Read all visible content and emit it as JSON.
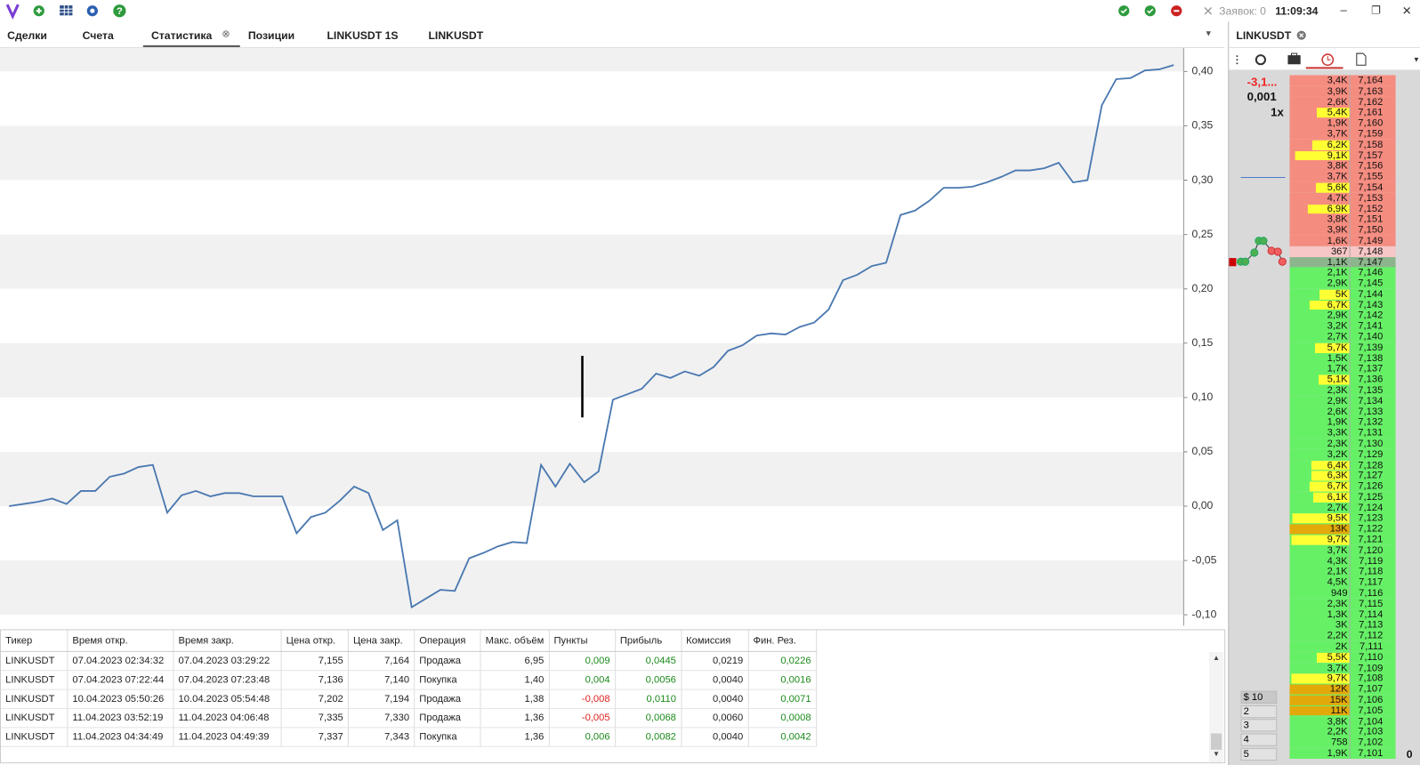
{
  "toolbar": {
    "orders": "Заявок: 0",
    "time": "11:09:34"
  },
  "tabs": [
    "Сделки",
    "Счета",
    "Статистика",
    "Позиции",
    "LINKUSDT 1S",
    "LINKUSDT"
  ],
  "chart_data": {
    "type": "line",
    "color": "#4a78b0",
    "values": [
      0,
      0.002,
      0.004,
      0.007,
      0.002,
      0.014,
      0.014,
      0.027,
      0.03,
      0.036,
      0.038,
      -0.006,
      0.01,
      0.014,
      0.009,
      0.012,
      0.012,
      0.009,
      0.009,
      0.009,
      -0.025,
      -0.01,
      -0.006,
      0.005,
      0.018,
      0.012,
      -0.022,
      -0.013,
      -0.093,
      -0.085,
      -0.077,
      -0.078,
      -0.048,
      -0.043,
      -0.037,
      -0.033,
      -0.034,
      0.038,
      0.018,
      0.039,
      0.022,
      0.032,
      0.098,
      0.103,
      0.108,
      0.122,
      0.118,
      0.124,
      0.12,
      0.128,
      0.143,
      0.148,
      0.157,
      0.159,
      0.158,
      0.165,
      0.169,
      0.181,
      0.208,
      0.213,
      0.221,
      0.224,
      0.268,
      0.272,
      0.281,
      0.293,
      0.293,
      0.294,
      0.298,
      0.303,
      0.309,
      0.309,
      0.311,
      0.316,
      0.298,
      0.3,
      0.369,
      0.393,
      0.394,
      0.401,
      0.402,
      0.406
    ],
    "ylim": [
      -0.11,
      0.42
    ],
    "yticks": [
      {
        "value": 0.4,
        "label": "0,40"
      },
      {
        "value": 0.35,
        "label": "0,35"
      },
      {
        "value": 0.3,
        "label": "0,30"
      },
      {
        "value": 0.25,
        "label": "0,25"
      },
      {
        "value": 0.2,
        "label": "0,20"
      },
      {
        "value": 0.15,
        "label": "0,15"
      },
      {
        "value": 0.1,
        "label": "0,10"
      },
      {
        "value": 0.05,
        "label": "0,05"
      },
      {
        "value": 0,
        "label": "0,00"
      },
      {
        "value": -0.05,
        "label": "-0,05"
      },
      {
        "value": -0.1,
        "label": "-0,10"
      }
    ]
  },
  "table": {
    "columns": [
      "Тикер",
      "Время откр.",
      "Время закр.",
      "Цена откр.",
      "Цена закр.",
      "Операция",
      "Макс. объём",
      "Пункты",
      "Прибыль",
      "Комиссия",
      "Фин. Рез."
    ],
    "rows": [
      [
        "LINKUSDT",
        "07.04.2023 02:34:32",
        "07.04.2023 03:29:22",
        "7,155",
        "7,164",
        "Продажа",
        "6,95",
        "0,009",
        "0,0445",
        "0,0219",
        "0,0226"
      ],
      [
        "LINKUSDT",
        "07.04.2023 07:22:44",
        "07.04.2023 07:23:48",
        "7,136",
        "7,140",
        "Покупка",
        "1,40",
        "0,004",
        "0,0056",
        "0,0040",
        "0,0016"
      ],
      [
        "LINKUSDT",
        "10.04.2023 05:50:26",
        "10.04.2023 05:54:48",
        "7,202",
        "7,194",
        "Продажа",
        "1,38",
        "-0,008",
        "0,0110",
        "0,0040",
        "0,0071"
      ],
      [
        "LINKUSDT",
        "11.04.2023 03:52:19",
        "11.04.2023 04:06:48",
        "7,335",
        "7,330",
        "Продажа",
        "1,36",
        "-0,005",
        "0,0068",
        "0,0060",
        "0,0008"
      ],
      [
        "LINKUSDT",
        "11.04.2023 04:34:49",
        "11.04.2023 04:49:39",
        "7,337",
        "7,343",
        "Покупка",
        "1,36",
        "0,006",
        "0,0082",
        "0,0040",
        "0,0042"
      ]
    ]
  },
  "book": {
    "tab": "LINKUSDT",
    "pnl": "-3,1...",
    "size": "0,001",
    "leverage": "1x",
    "asks": [
      [
        "3,4K",
        "7,164"
      ],
      [
        "3,9K",
        "7,163"
      ],
      [
        "2,6K",
        "7,162"
      ],
      [
        "5,4K",
        "7,161"
      ],
      [
        "1,9K",
        "7,160"
      ],
      [
        "3,7K",
        "7,159"
      ],
      [
        "6,2K",
        "7,158"
      ],
      [
        "9,1K",
        "7,157"
      ],
      [
        "3,8K",
        "7,156"
      ],
      [
        "3,7K",
        "7,155"
      ],
      [
        "5,6K",
        "7,154"
      ],
      [
        "4,7K",
        "7,153"
      ],
      [
        "6,9K",
        "7,152"
      ],
      [
        "3,8K",
        "7,151"
      ],
      [
        "3,9K",
        "7,150"
      ],
      [
        "1,6K",
        "7,149"
      ],
      [
        "367",
        "7,148"
      ]
    ],
    "bids": [
      [
        "1,1K",
        "7,147"
      ],
      [
        "2,1K",
        "7,146"
      ],
      [
        "2,9K",
        "7,145"
      ],
      [
        "5K",
        "7,144"
      ],
      [
        "6,7K",
        "7,143"
      ],
      [
        "2,9K",
        "7,142"
      ],
      [
        "3,2K",
        "7,141"
      ],
      [
        "2,7K",
        "7,140"
      ],
      [
        "5,7K",
        "7,139"
      ],
      [
        "1,5K",
        "7,138"
      ],
      [
        "1,7K",
        "7,137"
      ],
      [
        "5,1K",
        "7,136"
      ],
      [
        "2,3K",
        "7,135"
      ],
      [
        "2,9K",
        "7,134"
      ],
      [
        "2,6K",
        "7,133"
      ],
      [
        "1,9K",
        "7,132"
      ],
      [
        "3,3K",
        "7,131"
      ],
      [
        "2,3K",
        "7,130"
      ],
      [
        "3,2K",
        "7,129"
      ],
      [
        "6,4K",
        "7,128"
      ],
      [
        "6,3K",
        "7,127"
      ],
      [
        "6,7K",
        "7,126"
      ],
      [
        "6,1K",
        "7,125"
      ],
      [
        "2,7K",
        "7,124"
      ],
      [
        "9,5K",
        "7,123"
      ],
      [
        "13K",
        "7,122"
      ],
      [
        "9,7K",
        "7,121"
      ],
      [
        "3,7K",
        "7,120"
      ],
      [
        "4,3K",
        "7,119"
      ],
      [
        "2,1K",
        "7,118"
      ],
      [
        "4,5K",
        "7,117"
      ],
      [
        "949",
        "7,116"
      ],
      [
        "2,3K",
        "7,115"
      ],
      [
        "1,3K",
        "7,114"
      ],
      [
        "3K",
        "7,113"
      ],
      [
        "2,2K",
        "7,112"
      ],
      [
        "2K",
        "7,111"
      ],
      [
        "5,5K",
        "7,110"
      ],
      [
        "3,7K",
        "7,109"
      ],
      [
        "9,7K",
        "7,108"
      ],
      [
        "12K",
        "7,107"
      ],
      [
        "15K",
        "7,106"
      ],
      [
        "11K",
        "7,105"
      ],
      [
        "3,8K",
        "7,104"
      ],
      [
        "2,2K",
        "7,103"
      ],
      [
        "758",
        "7,102"
      ],
      [
        "1,9K",
        "7,101"
      ]
    ],
    "volume_presets": [
      "$ 10",
      "2",
      "3",
      "4",
      "5"
    ],
    "footer": "0"
  }
}
